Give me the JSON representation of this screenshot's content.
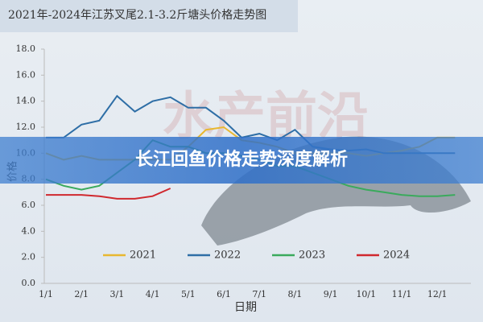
{
  "chart_data": {
    "type": "line",
    "title": "2021年-2024年江苏叉尾2.1-3.2斤塘头价格走势图",
    "watermark": "水产前沿",
    "xlabel": "日期",
    "ylabel": "价格",
    "categories": [
      "1/1",
      null,
      "2/1",
      null,
      "3/1",
      null,
      "4/1",
      null,
      "5/1",
      null,
      "6/1",
      null,
      "7/1",
      null,
      "8/1",
      null,
      "9/1",
      null,
      "10/1",
      null,
      "11/1",
      null,
      "12/1",
      null
    ],
    "series": [
      {
        "name": "2021",
        "color": "#e8b830",
        "values": [
          10.0,
          9.5,
          9.8,
          9.5,
          9.5,
          9.5,
          9.5,
          9.5,
          10.5,
          11.8,
          12.0,
          11.0,
          10.8,
          10.5,
          10.0,
          10.0,
          10.0,
          10.0,
          9.8,
          10.0,
          10.2,
          10.5,
          11.2,
          11.2
        ]
      },
      {
        "name": "2022",
        "color": "#2e6ea6",
        "values": [
          11.2,
          11.2,
          12.2,
          12.5,
          14.4,
          13.2,
          14.0,
          14.3,
          13.5,
          13.5,
          12.5,
          11.2,
          11.5,
          11.0,
          11.8,
          10.5,
          10.3,
          10.2,
          10.3,
          10.0,
          10.0,
          10.0,
          10.0,
          10.0
        ]
      },
      {
        "name": "2023",
        "color": "#3aaa5c",
        "values": [
          8.0,
          7.5,
          7.2,
          7.5,
          8.5,
          9.5,
          11.0,
          10.5,
          10.5,
          10.0,
          10.0,
          9.8,
          9.5,
          9.0,
          9.0,
          8.5,
          8.0,
          7.5,
          7.2,
          7.0,
          6.8,
          6.7,
          6.7,
          6.8
        ]
      },
      {
        "name": "2024",
        "color": "#d0282e",
        "values": [
          6.8,
          6.8,
          6.8,
          6.7,
          6.5,
          6.5,
          6.7,
          7.3,
          null,
          null,
          null,
          null,
          null,
          null,
          null,
          null,
          null,
          null,
          null,
          null,
          null,
          null,
          null,
          null
        ]
      }
    ],
    "ylim": [
      0,
      18
    ],
    "yticks": [
      {
        "value": 0,
        "label": "0.0"
      },
      {
        "value": 2,
        "label": "2.0"
      },
      {
        "value": 4,
        "label": "4.0"
      },
      {
        "value": 6,
        "label": "6.0"
      },
      {
        "value": 8,
        "label": "8.0"
      },
      {
        "value": 10,
        "label": "10.0"
      },
      {
        "value": 12,
        "label": "12.0"
      },
      {
        "value": 14,
        "label": "14.0"
      },
      {
        "value": 16,
        "label": "16.0"
      },
      {
        "value": 18,
        "label": "18.0"
      }
    ],
    "grid": false,
    "legend": "bottom"
  },
  "banner": {
    "title": "长江回鱼价格走势深度解析"
  }
}
